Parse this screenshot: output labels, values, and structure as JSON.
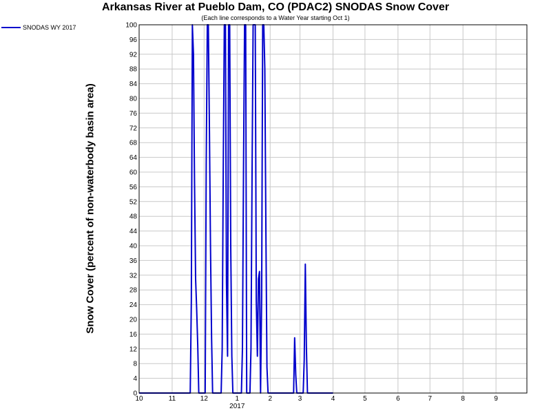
{
  "chart_data": {
    "type": "line",
    "title": "Arkansas River at Pueblo Dam, CO (PDAC2) SNODAS Snow Cover",
    "subtitle": "(Each line corresponds to a Water Year starting Oct 1)",
    "ylabel": "Snow Cover (percent of non-waterbody basin area)",
    "xlabel": "",
    "ylim": [
      0,
      100
    ],
    "y_ticks": [
      0,
      4,
      8,
      12,
      16,
      20,
      24,
      28,
      32,
      36,
      40,
      44,
      48,
      52,
      56,
      60,
      64,
      68,
      72,
      76,
      80,
      84,
      88,
      92,
      96,
      100
    ],
    "xlim": [
      "2016-10-01",
      "2017-09-30"
    ],
    "x_ticks": [
      {
        "date": "2016-10-01",
        "label": "10"
      },
      {
        "date": "2016-11-01",
        "label": "11"
      },
      {
        "date": "2016-12-01",
        "label": "12"
      },
      {
        "date": "2017-01-01",
        "label": "1"
      },
      {
        "date": "2017-02-01",
        "label": "2"
      },
      {
        "date": "2017-03-01",
        "label": "3"
      },
      {
        "date": "2017-04-01",
        "label": "4"
      },
      {
        "date": "2017-05-01",
        "label": "5"
      },
      {
        "date": "2017-06-01",
        "label": "6"
      },
      {
        "date": "2017-07-01",
        "label": "7"
      },
      {
        "date": "2017-08-01",
        "label": "8"
      },
      {
        "date": "2017-09-01",
        "label": "9"
      }
    ],
    "year_label": "2017",
    "grid": true,
    "legend_position": "top-left",
    "series": [
      {
        "name": "SNODAS WY 2017",
        "color": "#0000cc",
        "points": [
          [
            "2016-10-01",
            0
          ],
          [
            "2016-11-18",
            0
          ],
          [
            "2016-11-19",
            25
          ],
          [
            "2016-11-20",
            100
          ],
          [
            "2016-11-21",
            92
          ],
          [
            "2016-11-22",
            58
          ],
          [
            "2016-11-23",
            31
          ],
          [
            "2016-11-24",
            23
          ],
          [
            "2016-11-25",
            13
          ],
          [
            "2016-11-26",
            0
          ],
          [
            "2016-12-02",
            0
          ],
          [
            "2016-12-03",
            62
          ],
          [
            "2016-12-04",
            100
          ],
          [
            "2016-12-05",
            100
          ],
          [
            "2016-12-06",
            71
          ],
          [
            "2016-12-07",
            40
          ],
          [
            "2016-12-08",
            15
          ],
          [
            "2016-12-09",
            0
          ],
          [
            "2016-12-17",
            0
          ],
          [
            "2016-12-18",
            12
          ],
          [
            "2016-12-19",
            62
          ],
          [
            "2016-12-20",
            100
          ],
          [
            "2016-12-21",
            100
          ],
          [
            "2016-12-22",
            30
          ],
          [
            "2016-12-23",
            10
          ],
          [
            "2016-12-24",
            100
          ],
          [
            "2016-12-25",
            100
          ],
          [
            "2016-12-26",
            40
          ],
          [
            "2016-12-27",
            10
          ],
          [
            "2016-12-28",
            0
          ],
          [
            "2017-01-05",
            0
          ],
          [
            "2017-01-06",
            12
          ],
          [
            "2017-01-07",
            62
          ],
          [
            "2017-01-08",
            100
          ],
          [
            "2017-01-09",
            100
          ],
          [
            "2017-01-10",
            0
          ],
          [
            "2017-01-13",
            0
          ],
          [
            "2017-01-14",
            12
          ],
          [
            "2017-01-15",
            60
          ],
          [
            "2017-01-16",
            100
          ],
          [
            "2017-01-17",
            100
          ],
          [
            "2017-01-18",
            100
          ],
          [
            "2017-01-19",
            25
          ],
          [
            "2017-01-20",
            10
          ],
          [
            "2017-01-21",
            31
          ],
          [
            "2017-01-22",
            33
          ],
          [
            "2017-01-23",
            0
          ],
          [
            "2017-01-24",
            26
          ],
          [
            "2017-01-25",
            100
          ],
          [
            "2017-01-26",
            100
          ],
          [
            "2017-01-27",
            88
          ],
          [
            "2017-01-28",
            43
          ],
          [
            "2017-01-29",
            7
          ],
          [
            "2017-01-30",
            0
          ],
          [
            "2017-02-23",
            0
          ],
          [
            "2017-02-24",
            15
          ],
          [
            "2017-02-25",
            5
          ],
          [
            "2017-02-26",
            0
          ],
          [
            "2017-03-04",
            0
          ],
          [
            "2017-03-05",
            9
          ],
          [
            "2017-03-06",
            35
          ],
          [
            "2017-03-07",
            13
          ],
          [
            "2017-03-08",
            0
          ],
          [
            "2017-04-01",
            0
          ]
        ]
      }
    ]
  }
}
